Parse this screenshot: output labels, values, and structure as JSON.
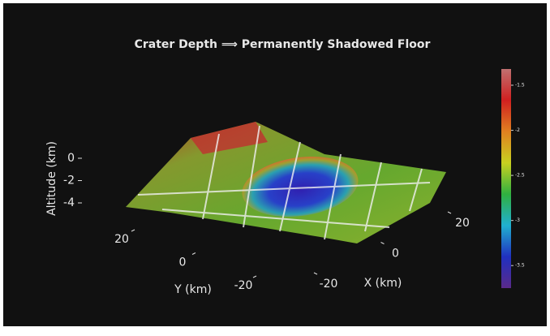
{
  "chart_data": {
    "type": "surface",
    "title": "Crater Depth ⟹ Permanently Shadowed Floor",
    "zlabel": "Altitude (km)",
    "ylabel": "Y (km)",
    "xlabel": "X (km)",
    "xlim": [
      -30,
      30
    ],
    "xticks": [
      -20,
      0,
      20
    ],
    "ylim": [
      -30,
      30
    ],
    "yticks": [
      20,
      0,
      -20
    ],
    "zlim": [
      -5,
      1
    ],
    "zticks": [
      0,
      -2,
      -4
    ],
    "colorbar": {
      "lim": [
        -3.75,
        -1.32
      ],
      "ticks": [
        -1.5,
        -2,
        -2.5,
        -3,
        -3.5
      ],
      "colors": [
        "#5a2a8a",
        "#2030c0",
        "#20b0d0",
        "#30b040",
        "#c8d020",
        "#e08020",
        "#d02020",
        "#c07070"
      ]
    }
  }
}
